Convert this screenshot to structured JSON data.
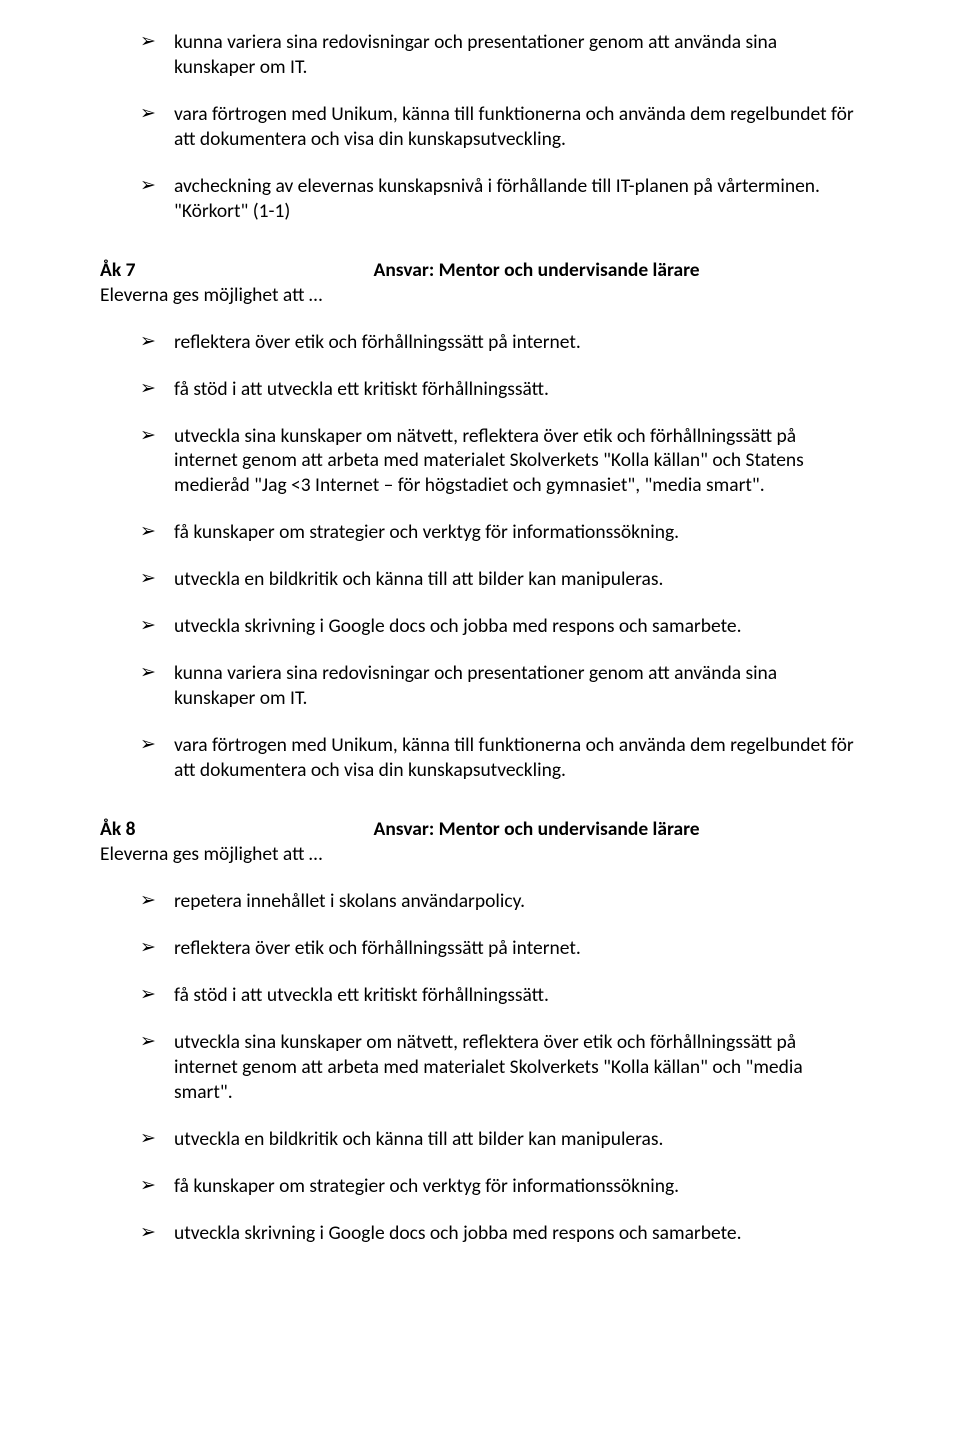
{
  "top_bullets": [
    "kunna variera sina redovisningar och presentationer genom att använda sina kunskaper om IT.",
    "vara förtrogen med Unikum, känna till funktionerna och använda dem regelbundet för att dokumentera och visa din kunskapsutveckling.",
    "avcheckning av elevernas kunskapsnivå i förhållande till IT-planen på vårterminen. \"Körkort\" (1-1)"
  ],
  "section7": {
    "label": "Åk 7",
    "resp": "Ansvar: Mentor och undervisande lärare",
    "sub": "Eleverna ges möjlighet att …",
    "bullets": [
      "reflektera över etik och förhållningssätt på internet.",
      "få stöd i att utveckla ett kritiskt förhållningssätt.",
      "utveckla sina kunskaper om nätvett, reflektera över etik och förhållningssätt på internet genom att arbeta med materialet Skolverkets \"Kolla källan\" och Statens medieråd \"Jag <3 Internet – för högstadiet och gymnasiet\", \"media smart\".",
      "få kunskaper om strategier och verktyg för informationssökning.",
      "utveckla en bildkritik och känna till att bilder kan manipuleras.",
      "utveckla skrivning i Google docs och jobba med respons och samarbete.",
      "kunna variera sina redovisningar och presentationer genom att använda sina kunskaper om IT.",
      "vara förtrogen med Unikum, känna till funktionerna och använda dem regelbundet för att dokumentera och visa din kunskapsutveckling."
    ]
  },
  "section8": {
    "label": "Åk 8",
    "resp": "Ansvar: Mentor och undervisande lärare",
    "sub": "Eleverna ges möjlighet att …",
    "bullets": [
      "repetera innehållet i skolans användarpolicy.",
      "reflektera över etik och förhållningssätt på internet.",
      "få stöd i att utveckla ett kritiskt förhållningssätt.",
      "utveckla sina kunskaper om nätvett, reflektera över etik och förhållningssätt på internet genom att arbeta med materialet Skolverkets \"Kolla källan\" och \"media smart\".",
      "utveckla en bildkritik och känna till att bilder kan manipuleras.",
      "få kunskaper om strategier och verktyg för informationssökning.",
      "utveckla skrivning i Google docs och jobba med respons och samarbete."
    ]
  }
}
